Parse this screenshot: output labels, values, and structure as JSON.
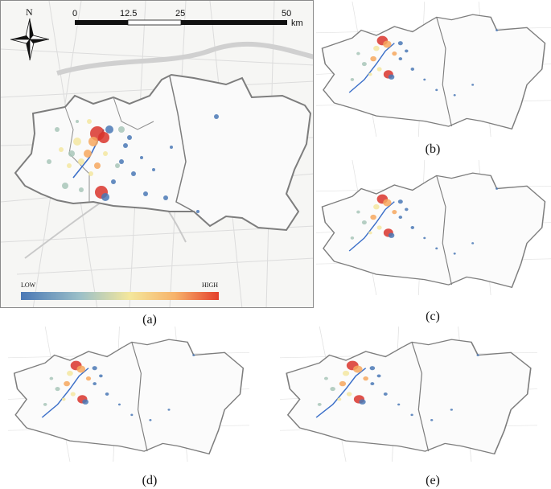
{
  "figure": {
    "panels": [
      {
        "id": "a",
        "caption": "(a)"
      },
      {
        "id": "b",
        "caption": "(b)"
      },
      {
        "id": "c",
        "caption": "(c)"
      },
      {
        "id": "d",
        "caption": "(d)"
      },
      {
        "id": "e",
        "caption": "(e)"
      }
    ]
  },
  "map_main": {
    "north_label": "N",
    "scale_ticks": [
      "0",
      "12.5",
      "25",
      "50"
    ],
    "scale_unit": "km",
    "legend_low": "LOW",
    "legend_high": "HIGH",
    "legend_colors": [
      "#4a78b5",
      "#9cc0c8",
      "#f4e79c",
      "#f7b26a",
      "#e4402c"
    ]
  },
  "colors": {
    "low": "#4a78b5",
    "mid_low": "#a8c6b8",
    "mid": "#f3e6a0",
    "mid_high": "#f6a75e",
    "high": "#d9342b",
    "river": "#3b6fc9",
    "boundary": "#7a7a7a",
    "roads": "#d8d8d8"
  }
}
